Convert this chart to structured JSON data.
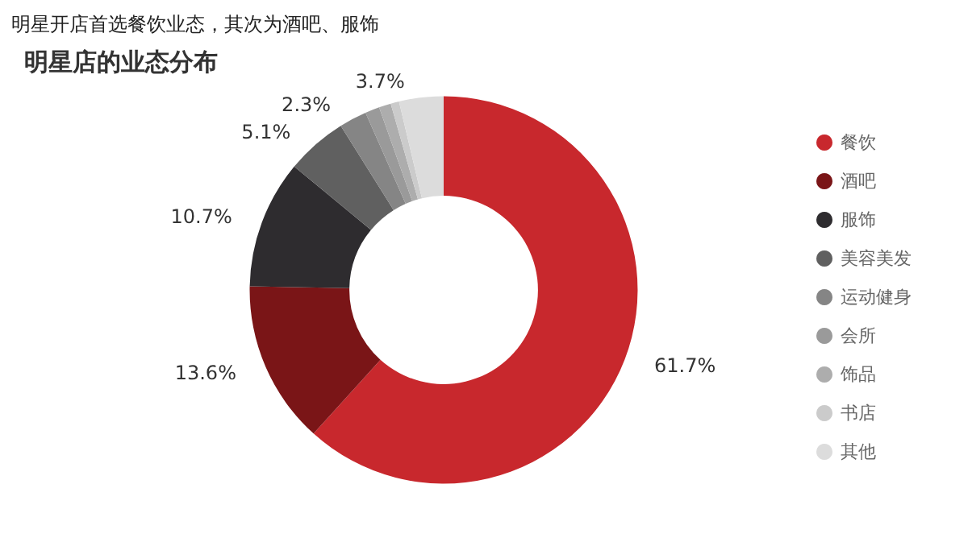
{
  "chart_data": {
    "type": "donut",
    "title": "明星开店首选餐饮业态，其次为酒吧、服饰",
    "subtitle": "明星店的业态分布",
    "categories": [
      "餐饮",
      "酒吧",
      "服饰",
      "美容美发",
      "运动健身",
      "会所",
      "饰品",
      "书店",
      "其他"
    ],
    "values": [
      61.7,
      13.6,
      10.7,
      5.1,
      2.3,
      1.2,
      1.0,
      0.7,
      3.7
    ],
    "value_labels": [
      "61.7%",
      "13.6%",
      "10.7%",
      "5.1%",
      "2.3%",
      null,
      null,
      null,
      "3.7%"
    ],
    "colors": [
      "#c8282d",
      "#7a1517",
      "#2e2c2f",
      "#606060",
      "#858585",
      "#9a9a9a",
      "#adadad",
      "#cbcbcb",
      "#dcdcdc"
    ],
    "legend": "right"
  }
}
